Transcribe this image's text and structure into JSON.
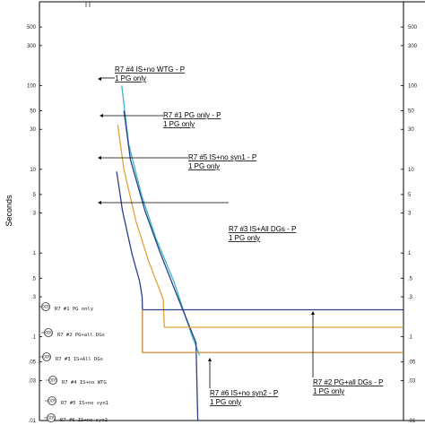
{
  "chart_data": {
    "type": "line",
    "title": "",
    "xlabel": "",
    "ylabel": "Seconds",
    "ylim": [
      0.01,
      1000
    ],
    "yscale": "log",
    "grid": false,
    "yticks": [
      {
        "value": 500,
        "label": "500"
      },
      {
        "value": 300,
        "label": "300"
      },
      {
        "value": 100,
        "label": "100"
      },
      {
        "value": 50,
        "label": "50"
      },
      {
        "value": 30,
        "label": "30"
      },
      {
        "value": 10,
        "label": "10"
      },
      {
        "value": 5,
        "label": "5"
      },
      {
        "value": 3,
        "label": "3"
      },
      {
        "value": 1,
        "label": "1"
      },
      {
        "value": 0.5,
        "label": ".5"
      },
      {
        "value": 0.3,
        "label": ".3"
      },
      {
        "value": 0.1,
        "label": ".1"
      },
      {
        "value": 0.05,
        "label": ".05"
      },
      {
        "value": 0.03,
        "label": ".03"
      },
      {
        "value": 0.01,
        "label": ".01"
      }
    ],
    "xlim_units": "relative",
    "series": [
      {
        "color": "#3cb8c0",
        "points": [
          [
            0.226,
            100
          ],
          [
            0.245,
            20
          ],
          [
            0.28,
            5
          ],
          [
            0.32,
            1.5
          ],
          [
            0.37,
            0.45
          ],
          [
            0.4,
            0.18
          ],
          [
            0.42,
            0.1
          ],
          [
            0.44,
            0.06
          ]
        ]
      },
      {
        "color": "#2c3f8c",
        "points": [
          [
            0.232,
            50
          ],
          [
            0.25,
            13
          ],
          [
            0.29,
            3.2
          ],
          [
            0.33,
            1.05
          ],
          [
            0.37,
            0.38
          ],
          [
            0.41,
            0.14
          ],
          [
            0.43,
            0.085
          ],
          [
            0.435,
            0.01
          ]
        ]
      },
      {
        "color": "#e0a33a",
        "points": [
          [
            0.215,
            34
          ],
          [
            0.232,
            10
          ],
          [
            0.265,
            2.4
          ],
          [
            0.3,
            0.8
          ],
          [
            0.34,
            0.28
          ],
          [
            0.343,
            0.13
          ],
          [
            1.0,
            0.13
          ]
        ]
      },
      {
        "color": "#2c3f8c",
        "points": [
          [
            0.212,
            9.4
          ],
          [
            0.228,
            3.2
          ],
          [
            0.255,
            0.95
          ],
          [
            0.275,
            0.46
          ],
          [
            0.282,
            0.3
          ],
          [
            0.283,
            0.21
          ],
          [
            1.0,
            0.21
          ]
        ]
      },
      {
        "color": "#c98a33",
        "points": [
          [
            0.283,
            0.21
          ],
          [
            0.283,
            0.065
          ],
          [
            1.0,
            0.065
          ]
        ]
      }
    ],
    "annotations": [
      {
        "line1": "R7 #4 IS+no WTG - P",
        "line2": "1 PG only"
      },
      {
        "line1": "R7 #1 PG only - P",
        "line2": "1 PG only"
      },
      {
        "line1": "R7 #5 IS+no syn1 - P",
        "line2": "1 PG only"
      },
      {
        "line1": "R7 #3 IS+All DGs - P",
        "line2": "1 PG only"
      },
      {
        "line1": "R7 #6 IS+no syn2 - P",
        "line2": "1 PG only"
      },
      {
        "line1": "R7 #2 PG+all DGs - P",
        "line2": "1 PG only"
      }
    ],
    "relay_legend": [
      {
        "tag": "OCR",
        "text": "R7 #1 PG only"
      },
      {
        "tag": "OCR",
        "text": "R7 #2 PG+all DGs"
      },
      {
        "tag": "OCR",
        "text": "R7 #3 IS+All DGs"
      },
      {
        "tag": "OCR",
        "text": "R7 #4 IS+no WTG"
      },
      {
        "tag": "OCR",
        "text": "R7 #5 IS+no syn1"
      },
      {
        "tag": "OCR",
        "text": "R7 #6 IS+no syn2"
      }
    ]
  }
}
